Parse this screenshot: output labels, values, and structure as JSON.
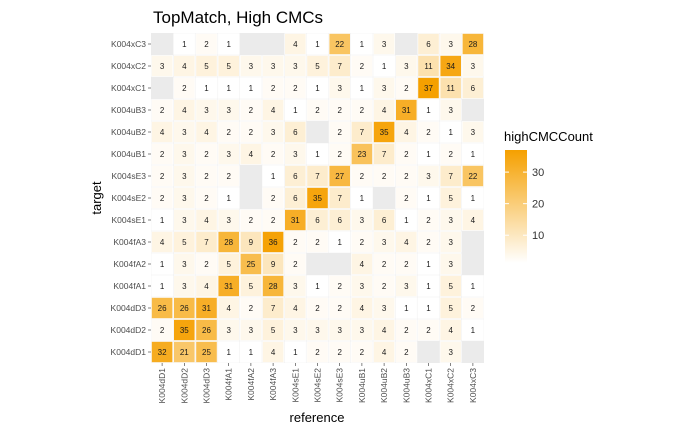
{
  "chart_data": {
    "type": "heatmap",
    "title": "TopMatch, High CMCs",
    "xlabel": "reference",
    "ylabel": "target",
    "legend_title": "highCMCCount",
    "legend_ticks": [
      10,
      20,
      30
    ],
    "legend_placement": "right",
    "value_range": [
      1,
      37
    ],
    "colors": {
      "low": "#ffffff",
      "high": "#f5a000",
      "panel_bg": "#ebebeb"
    },
    "grid": false,
    "x_categories": [
      "K004dD1",
      "K004dD2",
      "K004dD3",
      "K004fA1",
      "K004fA2",
      "K004fA3",
      "K004sE1",
      "K004sE2",
      "K004sE3",
      "K004uB1",
      "K004uB2",
      "K004uB3",
      "K004xC1",
      "K004xC2",
      "K004xC3"
    ],
    "y_categories": [
      "K004dD1",
      "K004dD2",
      "K004dD3",
      "K004fA1",
      "K004fA2",
      "K004fA3",
      "K004sE1",
      "K004sE2",
      "K004sE3",
      "K004uB1",
      "K004uB2",
      "K004uB3",
      "K004xC1",
      "K004xC2",
      "K004xC3"
    ],
    "values": [
      [
        32,
        21,
        25,
        1,
        1,
        4,
        1,
        2,
        2,
        2,
        4,
        2,
        null,
        3,
        null
      ],
      [
        2,
        35,
        26,
        3,
        3,
        5,
        3,
        3,
        3,
        3,
        4,
        2,
        2,
        4,
        1
      ],
      [
        26,
        26,
        31,
        4,
        2,
        7,
        4,
        2,
        2,
        4,
        3,
        1,
        1,
        5,
        2
      ],
      [
        1,
        3,
        4,
        31,
        5,
        28,
        3,
        1,
        2,
        3,
        2,
        3,
        1,
        5,
        1
      ],
      [
        1,
        3,
        2,
        5,
        25,
        9,
        2,
        null,
        null,
        4,
        2,
        2,
        1,
        3,
        null
      ],
      [
        4,
        5,
        7,
        28,
        9,
        36,
        2,
        2,
        1,
        2,
        3,
        4,
        2,
        3,
        null
      ],
      [
        1,
        3,
        4,
        3,
        2,
        2,
        31,
        6,
        6,
        3,
        6,
        1,
        2,
        3,
        4
      ],
      [
        2,
        3,
        2,
        1,
        null,
        2,
        6,
        35,
        7,
        1,
        null,
        2,
        1,
        5,
        1
      ],
      [
        2,
        3,
        2,
        2,
        null,
        1,
        6,
        7,
        27,
        2,
        2,
        2,
        3,
        7,
        22
      ],
      [
        2,
        3,
        2,
        3,
        4,
        2,
        3,
        1,
        2,
        23,
        7,
        2,
        1,
        2,
        1
      ],
      [
        4,
        3,
        4,
        2,
        2,
        3,
        6,
        null,
        2,
        7,
        35,
        4,
        2,
        1,
        3
      ],
      [
        2,
        4,
        3,
        3,
        2,
        4,
        1,
        2,
        2,
        2,
        4,
        31,
        1,
        3,
        null
      ],
      [
        null,
        2,
        1,
        1,
        1,
        2,
        2,
        1,
        3,
        1,
        3,
        2,
        37,
        11,
        6
      ],
      [
        3,
        4,
        5,
        5,
        3,
        3,
        3,
        5,
        7,
        2,
        1,
        3,
        11,
        34,
        3
      ],
      [
        null,
        1,
        2,
        1,
        null,
        null,
        4,
        1,
        22,
        1,
        3,
        null,
        6,
        3,
        28
      ]
    ]
  }
}
